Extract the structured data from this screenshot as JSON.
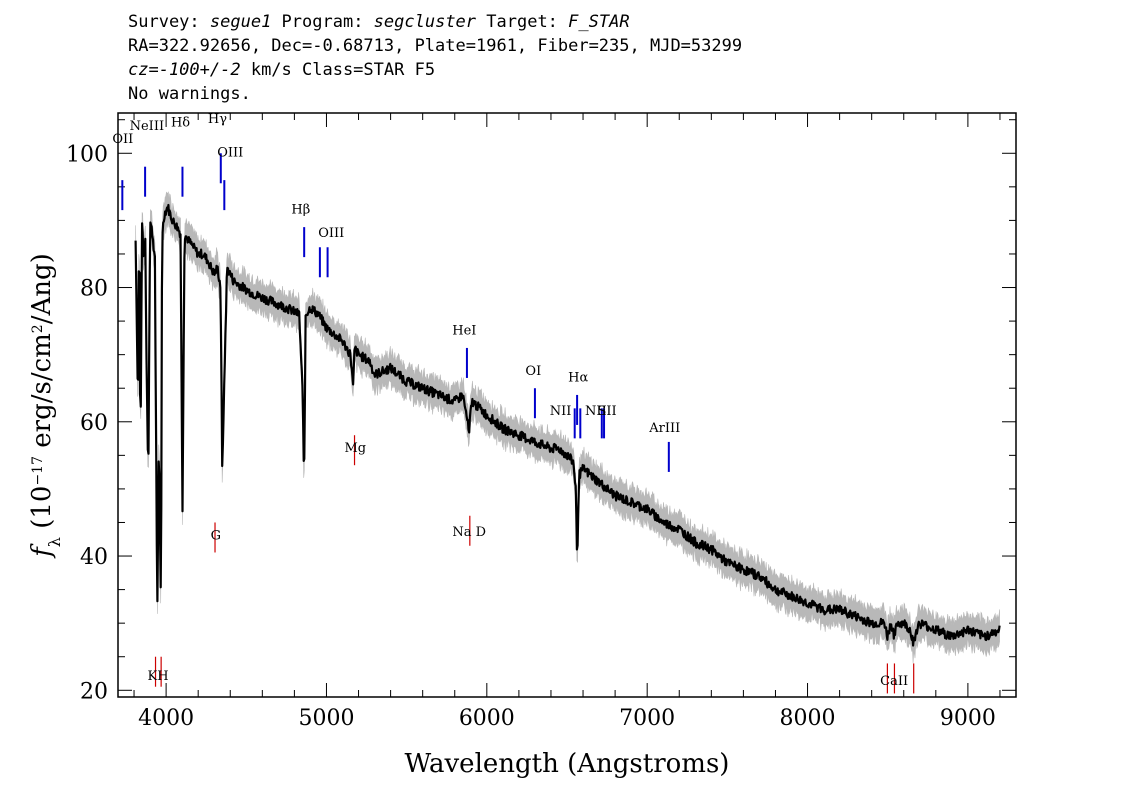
{
  "header": {
    "line1_prefix": "Survey: ",
    "survey": "segue1",
    "program_prefix": " Program: ",
    "program": "segcluster",
    "target_prefix": " Target: ",
    "target": "F_STAR",
    "line2": "RA=322.92656, Dec=-0.68713, Plate=1961, Fiber=235, MJD=53299",
    "line3_cz": "cz=-100+/-2",
    "line3_rest": " km/s Class=STAR F5",
    "line4": "No warnings."
  },
  "chart_data": {
    "type": "line",
    "title": "",
    "xlabel": "Wavelength (Angstroms)",
    "ylabel": "f_λ (10^-17 erg/s/cm^2/Ang)",
    "xlim": [
      3700,
      9300
    ],
    "ylim": [
      19,
      106
    ],
    "x_ticks": [
      4000,
      5000,
      6000,
      7000,
      8000,
      9000
    ],
    "y_ticks": [
      20,
      40,
      60,
      80,
      100
    ],
    "colors": {
      "flux": "#000000",
      "error": "#b8b8b8",
      "emission": "#0000cc",
      "absorption": "#cc0000"
    },
    "series": [
      {
        "values_x": [
          3810,
          3825,
          3832,
          3840,
          3850,
          3860,
          3870,
          3880,
          3889,
          3900,
          3915,
          3930,
          3945,
          3955,
          3968,
          3975,
          3990,
          4010,
          4040,
          4070,
          4090,
          4102,
          4115,
          4140,
          4170,
          4200,
          4230,
          4260,
          4300,
          4320,
          4340,
          4350,
          4380,
          4420,
          4480,
          4550,
          4650,
          4750,
          4830,
          4850,
          4861,
          4870,
          4900,
          4950,
          5000,
          5100,
          5150,
          5167,
          5175,
          5200,
          5270,
          5300,
          5400,
          5500,
          5600,
          5700,
          5800,
          5850,
          5880,
          5890,
          5896,
          5910,
          6000,
          6100,
          6200,
          6300,
          6400,
          6450,
          6500,
          6540,
          6555,
          6563,
          6575,
          6600,
          6700,
          6800,
          6900,
          7000,
          7100,
          7200,
          7300,
          7400,
          7500,
          7600,
          7700,
          7800,
          7900,
          8000,
          8100,
          8200,
          8300,
          8400,
          8480,
          8498,
          8520,
          8542,
          8560,
          8600,
          8640,
          8662,
          8680,
          8700,
          8800,
          8900,
          9000,
          9100,
          9200
        ],
        "values_y": [
          87,
          62,
          91,
          55,
          90,
          84,
          87,
          65,
          52,
          90,
          88,
          84,
          31,
          57,
          31,
          88,
          91,
          92,
          90,
          89,
          88,
          47,
          88,
          87,
          86,
          85,
          85,
          84,
          82,
          83,
          80,
          53,
          83,
          81,
          80,
          79,
          78,
          77,
          76,
          65,
          51,
          76,
          77,
          76,
          74,
          72,
          70,
          65,
          71,
          70,
          69,
          67,
          68,
          66,
          65,
          64,
          63,
          64,
          60,
          58,
          61,
          63,
          61,
          59,
          58,
          57,
          56,
          56,
          55,
          54,
          50,
          39,
          52,
          53,
          51,
          49,
          48,
          47,
          45,
          44,
          42,
          41,
          39,
          38,
          37,
          35,
          34,
          33,
          32,
          32,
          31,
          30,
          30,
          28,
          30,
          28,
          30,
          30,
          29,
          27,
          29,
          30,
          29,
          28,
          29,
          28,
          29
        ]
      }
    ],
    "line_markers": [
      {
        "label": "OII",
        "x": 3727,
        "kind": "emission",
        "y": 96
      },
      {
        "label": "NeIII",
        "x": 3869,
        "kind": "emission",
        "y": 98
      },
      {
        "label": "Hδ",
        "x": 4102,
        "kind": "emission",
        "y": 98
      },
      {
        "label": "Hγ",
        "x": 4341,
        "kind": "emission",
        "y": 100
      },
      {
        "label": "OIII",
        "x": 4363,
        "kind": "emission",
        "y": 96
      },
      {
        "label": "Hβ",
        "x": 4861,
        "kind": "emission",
        "y": 89
      },
      {
        "label": "OIII",
        "x": 4959,
        "kind": "emission",
        "y": 86
      },
      {
        "label": "OIII",
        "x": 5007,
        "kind": "emission",
        "y": 86
      },
      {
        "label": "HeI",
        "x": 5876,
        "kind": "emission",
        "y": 71
      },
      {
        "label": "OI",
        "x": 6300,
        "kind": "emission",
        "y": 65
      },
      {
        "label": "NII",
        "x": 6548,
        "kind": "emission",
        "y": 62
      },
      {
        "label": "Hα",
        "x": 6563,
        "kind": "emission",
        "y": 64
      },
      {
        "label": "NII",
        "x": 6583,
        "kind": "emission",
        "y": 62
      },
      {
        "label": "SII",
        "x": 6717,
        "kind": "emission",
        "y": 62
      },
      {
        "label": "SII",
        "x": 6731,
        "kind": "emission",
        "y": 62
      },
      {
        "label": "ArIII",
        "x": 7135,
        "kind": "emission",
        "y": 57
      },
      {
        "label": "Mg",
        "x": 5175,
        "kind": "absorption",
        "y": 58
      },
      {
        "label": "G",
        "x": 4305,
        "kind": "absorption",
        "y": 45
      },
      {
        "label": "Na D",
        "x": 5894,
        "kind": "absorption",
        "y": 46
      },
      {
        "label": "K",
        "x": 3934,
        "kind": "absorption",
        "y": 25
      },
      {
        "label": "H",
        "x": 3969,
        "kind": "absorption",
        "y": 25
      },
      {
        "label": "CaII",
        "x": 8498,
        "kind": "absorption",
        "y": 24
      },
      {
        "label": "CaII",
        "x": 8542,
        "kind": "absorption",
        "y": 24
      },
      {
        "label": "CaII",
        "x": 8662,
        "kind": "absorption",
        "y": 24
      }
    ],
    "marker_labels": [
      {
        "text": "OII",
        "x": 3730,
        "y": 101.5
      },
      {
        "text": "NeIII",
        "x": 3880,
        "y": 103.5
      },
      {
        "text": "Hδ",
        "x": 4090,
        "y": 104
      },
      {
        "text": "Hγ",
        "x": 4320,
        "y": 104.5
      },
      {
        "text": "OIII",
        "x": 4400,
        "y": 99.5
      },
      {
        "text": "Hβ",
        "x": 4840,
        "y": 91
      },
      {
        "text": "OIII",
        "x": 5030,
        "y": 87.5
      },
      {
        "text": "HeI",
        "x": 5860,
        "y": 73
      },
      {
        "text": "OI",
        "x": 6290,
        "y": 67
      },
      {
        "text": "NII",
        "x": 6460,
        "y": 61
      },
      {
        "text": "Hα",
        "x": 6570,
        "y": 66
      },
      {
        "text": "NII",
        "x": 6680,
        "y": 61
      },
      {
        "text": "SII",
        "x": 6750,
        "y": 61
      },
      {
        "text": "ArIII",
        "x": 7110,
        "y": 58.5
      },
      {
        "text": "Mg",
        "x": 5180,
        "y": 55.5
      },
      {
        "text": "G",
        "x": 4310,
        "y": 42.5
      },
      {
        "text": "Na D",
        "x": 5890,
        "y": 43
      },
      {
        "text": "KH",
        "x": 3950,
        "y": 21.5
      },
      {
        "text": "CaII",
        "x": 8540,
        "y": 20.8
      }
    ]
  }
}
